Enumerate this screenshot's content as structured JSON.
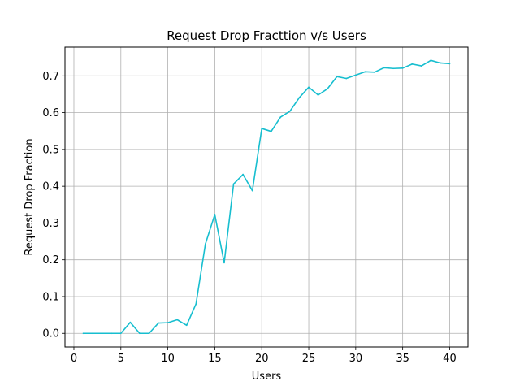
{
  "chart_data": {
    "type": "line",
    "title": "Request Drop Fracttion v/s Users",
    "xlabel": "Users",
    "ylabel": "Request Drop Fraction",
    "xlim": [
      -0.95,
      41.95
    ],
    "ylim": [
      -0.037,
      0.778
    ],
    "xticks": [
      0,
      5,
      10,
      15,
      20,
      25,
      30,
      35,
      40
    ],
    "yticks": [
      0.0,
      0.1,
      0.2,
      0.3,
      0.4,
      0.5,
      0.6,
      0.7
    ],
    "xtick_labels": [
      "0",
      "5",
      "10",
      "15",
      "20",
      "25",
      "30",
      "35",
      "40"
    ],
    "ytick_labels": [
      "0.0",
      "0.1",
      "0.2",
      "0.3",
      "0.4",
      "0.5",
      "0.6",
      "0.7"
    ],
    "grid": true,
    "series": [
      {
        "color": "#17becf",
        "x": [
          1,
          2,
          3,
          4,
          5,
          6,
          7,
          8,
          9,
          10,
          11,
          12,
          13,
          14,
          15,
          16,
          17,
          18,
          19,
          20,
          21,
          22,
          23,
          24,
          25,
          26,
          27,
          28,
          29,
          30,
          31,
          32,
          33,
          34,
          35,
          36,
          37,
          38,
          39,
          40
        ],
        "y": [
          0.0,
          0.0,
          0.0,
          0.0,
          0.0,
          0.03,
          0.0,
          0.0,
          0.028,
          0.029,
          0.037,
          0.022,
          0.08,
          0.243,
          0.323,
          0.192,
          0.406,
          0.432,
          0.388,
          0.557,
          0.549,
          0.588,
          0.604,
          0.641,
          0.669,
          0.648,
          0.665,
          0.698,
          0.693,
          0.702,
          0.711,
          0.71,
          0.722,
          0.72,
          0.721,
          0.732,
          0.727,
          0.742,
          0.735,
          0.733
        ]
      }
    ]
  }
}
